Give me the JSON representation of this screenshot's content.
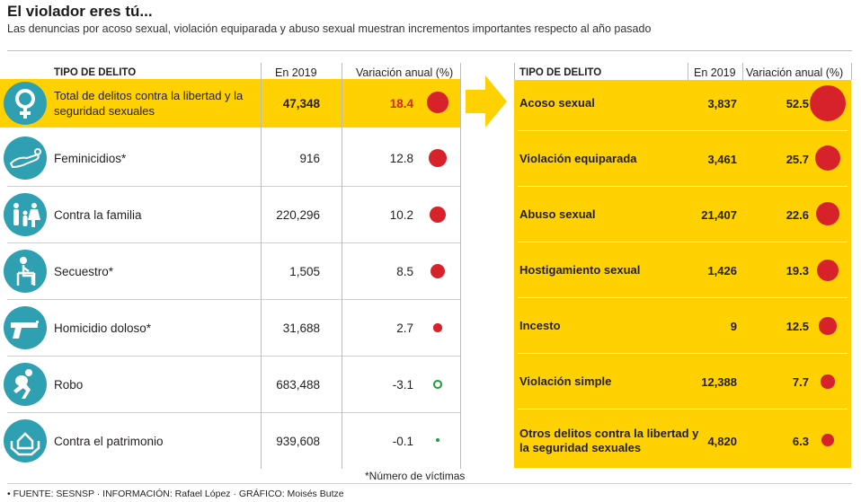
{
  "header": {
    "title": "El violador eres tú...",
    "subtitle": "Las denuncias por acoso sexual, violación equiparada y abuso sexual muestran incrementos importantes respecto al año pasado"
  },
  "left_table": {
    "col_tipo": "TIPO DE DELITO",
    "col_year": "En 2019",
    "col_var": "Variación anual (%)",
    "rows": [
      {
        "name": "Total de delitos contra la libertad y la seguridad sexuales",
        "value": "47,348",
        "variation": "18.4",
        "icon": "female-symbol-icon"
      },
      {
        "name": "Feminicidios*",
        "value": "916",
        "variation": "12.8",
        "icon": "lying-body-icon"
      },
      {
        "name": "Contra la familia",
        "value": "220,296",
        "variation": "10.2",
        "icon": "family-icon"
      },
      {
        "name": "Secuestro*",
        "value": "1,505",
        "variation": "8.5",
        "icon": "seated-captive-icon"
      },
      {
        "name": "Homicidio doloso*",
        "value": "31,688",
        "variation": "2.7",
        "icon": "gun-icon"
      },
      {
        "name": "Robo",
        "value": "683,488",
        "variation": "-3.1",
        "icon": "running-thief-icon"
      },
      {
        "name": "Contra el patrimonio",
        "value": "939,608",
        "variation": "-0.1",
        "icon": "house-in-hands-icon"
      }
    ]
  },
  "right_table": {
    "col_tipo": "TIPO DE DELITO",
    "col_year": "En 2019",
    "col_var": "Variación anual (%)",
    "rows": [
      {
        "name": "Acoso sexual",
        "value": "3,837",
        "variation": "52.5"
      },
      {
        "name": "Violación equiparada",
        "value": "3,461",
        "variation": "25.7"
      },
      {
        "name": "Abuso sexual",
        "value": "21,407",
        "variation": "22.6"
      },
      {
        "name": "Hostigamiento sexual",
        "value": "1,426",
        "variation": "19.3"
      },
      {
        "name": "Incesto",
        "value": "9",
        "variation": "12.5"
      },
      {
        "name": "Violación simple",
        "value": "12,388",
        "variation": "7.7"
      },
      {
        "name": "Otros delitos contra la libertad y la seguridad sexuales",
        "value": "4,820",
        "variation": "6.3"
      }
    ]
  },
  "footnote": "*Número de víctimas",
  "source": "• FUENTE: SESNSP · INFORMACIÓN: Rafael López · GRÁFICO: Moisés Butze",
  "colors": {
    "highlight": "#ffd100",
    "bubble_positive": "#d8222b",
    "bubble_negative": "#1e9e3e",
    "icon_bg": "#2f9fb2"
  },
  "chart_data": [
    {
      "type": "table",
      "columns": [
        "TIPO DE DELITO",
        "En 2019",
        "Variación anual (%)"
      ],
      "categories": [
        "Total de delitos contra la libertad y la seguridad sexuales",
        "Feminicidios*",
        "Contra la familia",
        "Secuestro*",
        "Homicidio doloso*",
        "Robo",
        "Contra el patrimonio"
      ],
      "series": [
        {
          "name": "En 2019",
          "values": [
            47348,
            916,
            220296,
            1505,
            31688,
            683488,
            939608
          ]
        },
        {
          "name": "Variación anual (%)",
          "values": [
            18.4,
            12.8,
            10.2,
            8.5,
            2.7,
            -3.1,
            -0.1
          ]
        }
      ]
    },
    {
      "type": "table",
      "columns": [
        "TIPO DE DELITO",
        "En 2019",
        "Variación anual (%)"
      ],
      "categories": [
        "Acoso sexual",
        "Violación equiparada",
        "Abuso sexual",
        "Hostigamiento sexual",
        "Incesto",
        "Violación simple",
        "Otros delitos contra la libertad y la seguridad sexuales"
      ],
      "series": [
        {
          "name": "En 2019",
          "values": [
            3837,
            3461,
            21407,
            1426,
            9,
            12388,
            4820
          ]
        },
        {
          "name": "Variación anual (%)",
          "values": [
            52.5,
            25.7,
            22.6,
            19.3,
            12.5,
            7.7,
            6.3
          ]
        }
      ]
    }
  ]
}
